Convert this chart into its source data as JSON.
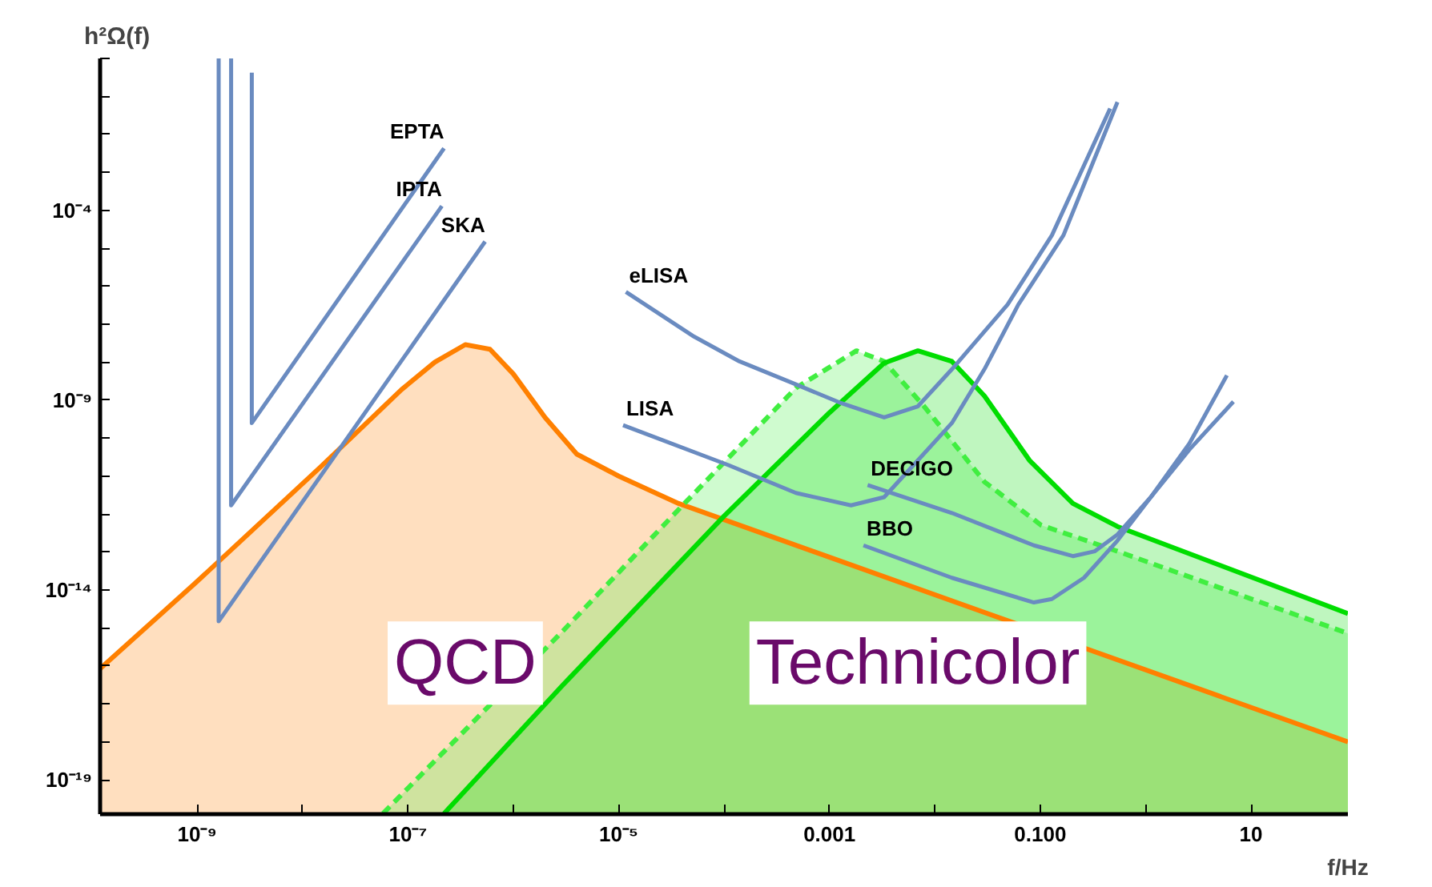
{
  "chart_data": {
    "type": "line",
    "xlabel": "f/Hz",
    "ylabel": "h²Ω(f)",
    "log": "xy",
    "grid": false,
    "xlim": [
      1.2e-10,
      83
    ],
    "ylim": [
      1.25e-20,
      1
    ],
    "xticks": [
      {
        "value": 1e-09,
        "label": "10⁻⁹"
      },
      {
        "value": 1e-08,
        "label": null
      },
      {
        "value": 1e-07,
        "label": "10⁻⁷"
      },
      {
        "value": 1e-06,
        "label": null
      },
      {
        "value": 1e-05,
        "label": "10⁻⁵"
      },
      {
        "value": 0.0001,
        "label": null
      },
      0.001,
      {
        "value": 0.01,
        "label": null
      },
      {
        "value": 0.1,
        "label": "0.100"
      },
      {
        "value": 1,
        "label": null
      },
      10
    ],
    "yticks": [
      {
        "value": 1,
        "label": null
      },
      {
        "value": 0.1,
        "label": null
      },
      {
        "value": 0.01,
        "label": null
      },
      {
        "value": 0.001,
        "label": null
      },
      {
        "value": 0.0001,
        "label": "10⁻⁴"
      },
      {
        "value": 1e-05,
        "label": null
      },
      {
        "value": 1e-06,
        "label": null
      },
      {
        "value": 1e-07,
        "label": null
      },
      {
        "value": 1e-08,
        "label": null
      },
      {
        "value": 1e-09,
        "label": "10⁻⁹"
      },
      {
        "value": 1e-10,
        "label": null
      },
      {
        "value": 1e-11,
        "label": null
      },
      {
        "value": 1e-12,
        "label": null
      },
      {
        "value": 1e-13,
        "label": null
      },
      {
        "value": 1e-14,
        "label": "10⁻¹⁴"
      },
      {
        "value": 1e-15,
        "label": null
      },
      {
        "value": 1e-16,
        "label": null
      },
      {
        "value": 1e-17,
        "label": null
      },
      {
        "value": 1e-18,
        "label": null
      },
      {
        "value": 1e-19,
        "label": "10⁻¹⁹"
      }
    ],
    "series": [
      {
        "name": "EPTA",
        "color": "#6a8bc0",
        "x": [
          3.3e-09,
          3.3e-09,
          2.2e-07
        ],
        "values": [
          0.42,
          2.5e-10,
          0.0043
        ]
      },
      {
        "name": "IPTA",
        "color": "#6a8bc0",
        "x": [
          2.1e-09,
          2.1e-09,
          2.1e-07
        ],
        "values": [
          1,
          1.7e-12,
          0.00013
        ]
      },
      {
        "name": "SKA",
        "color": "#6a8bc0",
        "x": [
          1.6e-09,
          1.6e-09,
          5.4e-07
        ],
        "values": [
          1,
          1.5e-15,
          1.5e-05
        ]
      },
      {
        "name": "eLISA",
        "color": "#6a8bc0",
        "x": [
          1.17e-05,
          5.2e-05,
          0.00014,
          0.00048,
          0.0013,
          0.0033,
          0.0069,
          0.0145,
          0.049,
          0.129,
          0.46
        ],
        "values": [
          7.1e-07,
          4.7e-08,
          1.05e-08,
          2.6e-09,
          8.3e-10,
          3.5e-10,
          6.9e-10,
          6.5e-09,
          3.3e-07,
          2.2e-05,
          0.048
        ]
      },
      {
        "name": "LISA",
        "color": "#6a8bc0",
        "x": [
          1.1e-05,
          0.00011,
          0.00048,
          0.0016,
          0.0033,
          0.0069,
          0.0145,
          0.0295,
          0.062,
          0.166,
          0.54
        ],
        "values": [
          2.2e-10,
          1.95e-11,
          3.6e-12,
          1.7e-12,
          2.8e-12,
          2.6e-11,
          2.5e-10,
          6.5e-09,
          3.3e-07,
          2.2e-05,
          0.071
        ]
      },
      {
        "name": "DECIGO",
        "color": "#6a8bc0",
        "x": [
          0.0023,
          0.0145,
          0.087,
          0.204,
          0.33,
          0.54,
          1.12,
          2.6,
          5.9
        ],
        "values": [
          5.8e-12,
          1.07e-12,
          1.5e-13,
          7.8e-14,
          1.05e-13,
          2.9e-13,
          2.8e-12,
          7.2e-11,
          4.5e-09
        ]
      },
      {
        "name": "BBO",
        "color": "#6a8bc0",
        "x": [
          0.0021,
          0.0145,
          0.087,
          0.129,
          0.26,
          0.54,
          1.12,
          2.6,
          6.8
        ],
        "values": [
          1.5e-13,
          2.1e-14,
          4.7e-15,
          5.8e-15,
          2.1e-14,
          2e-13,
          2.8e-12,
          5e-11,
          9.1e-10
        ]
      },
      {
        "name": "QCD",
        "type": "area",
        "color": "#ff8000",
        "x": [
          1.2e-10,
          9.3e-10,
          1.5e-08,
          8.7e-08,
          1.8e-07,
          3.5e-07,
          6e-07,
          1e-06,
          2e-06,
          4e-06,
          1e-05,
          3.7e-05,
          83
        ],
        "values": [
          8.5e-17,
          1.4e-14,
          1.8e-11,
          1.9e-09,
          1e-08,
          2.9e-08,
          2.2e-08,
          4.9e-09,
          3.5e-10,
          3.8e-11,
          1e-11,
          1.9e-12,
          1e-18
        ]
      },
      {
        "type": "area",
        "color": "#40ee40",
        "line_style": "dashed",
        "x": [
          5.8e-08,
          2.9e-06,
          4.2e-05,
          0.00048,
          0.0018,
          0.0033,
          0.0079,
          0.0295,
          0.102,
          0.54,
          83
        ],
        "values": [
          1.3e-20,
          7.9e-16,
          1.9e-12,
          2.1e-09,
          2e-08,
          1.05e-08,
          6.9e-10,
          7.1e-12,
          5.1e-13,
          1.05e-13,
          7.2e-16
        ]
      },
      {
        "name": "Technicolor",
        "type": "area",
        "color": "#00dd00",
        "x": [
          2.2e-07,
          2.9e-06,
          0.0001,
          0.001,
          0.0033,
          0.0069,
          0.0145,
          0.0295,
          0.079,
          0.204,
          0.54,
          83
        ],
        "values": [
          1.3e-20,
          3e-17,
          8.9e-13,
          4.7e-10,
          9.5e-09,
          2e-08,
          1.05e-08,
          1.3e-09,
          2.6e-11,
          1.9e-12,
          4.7e-13,
          2.4e-15
        ]
      }
    ]
  }
}
